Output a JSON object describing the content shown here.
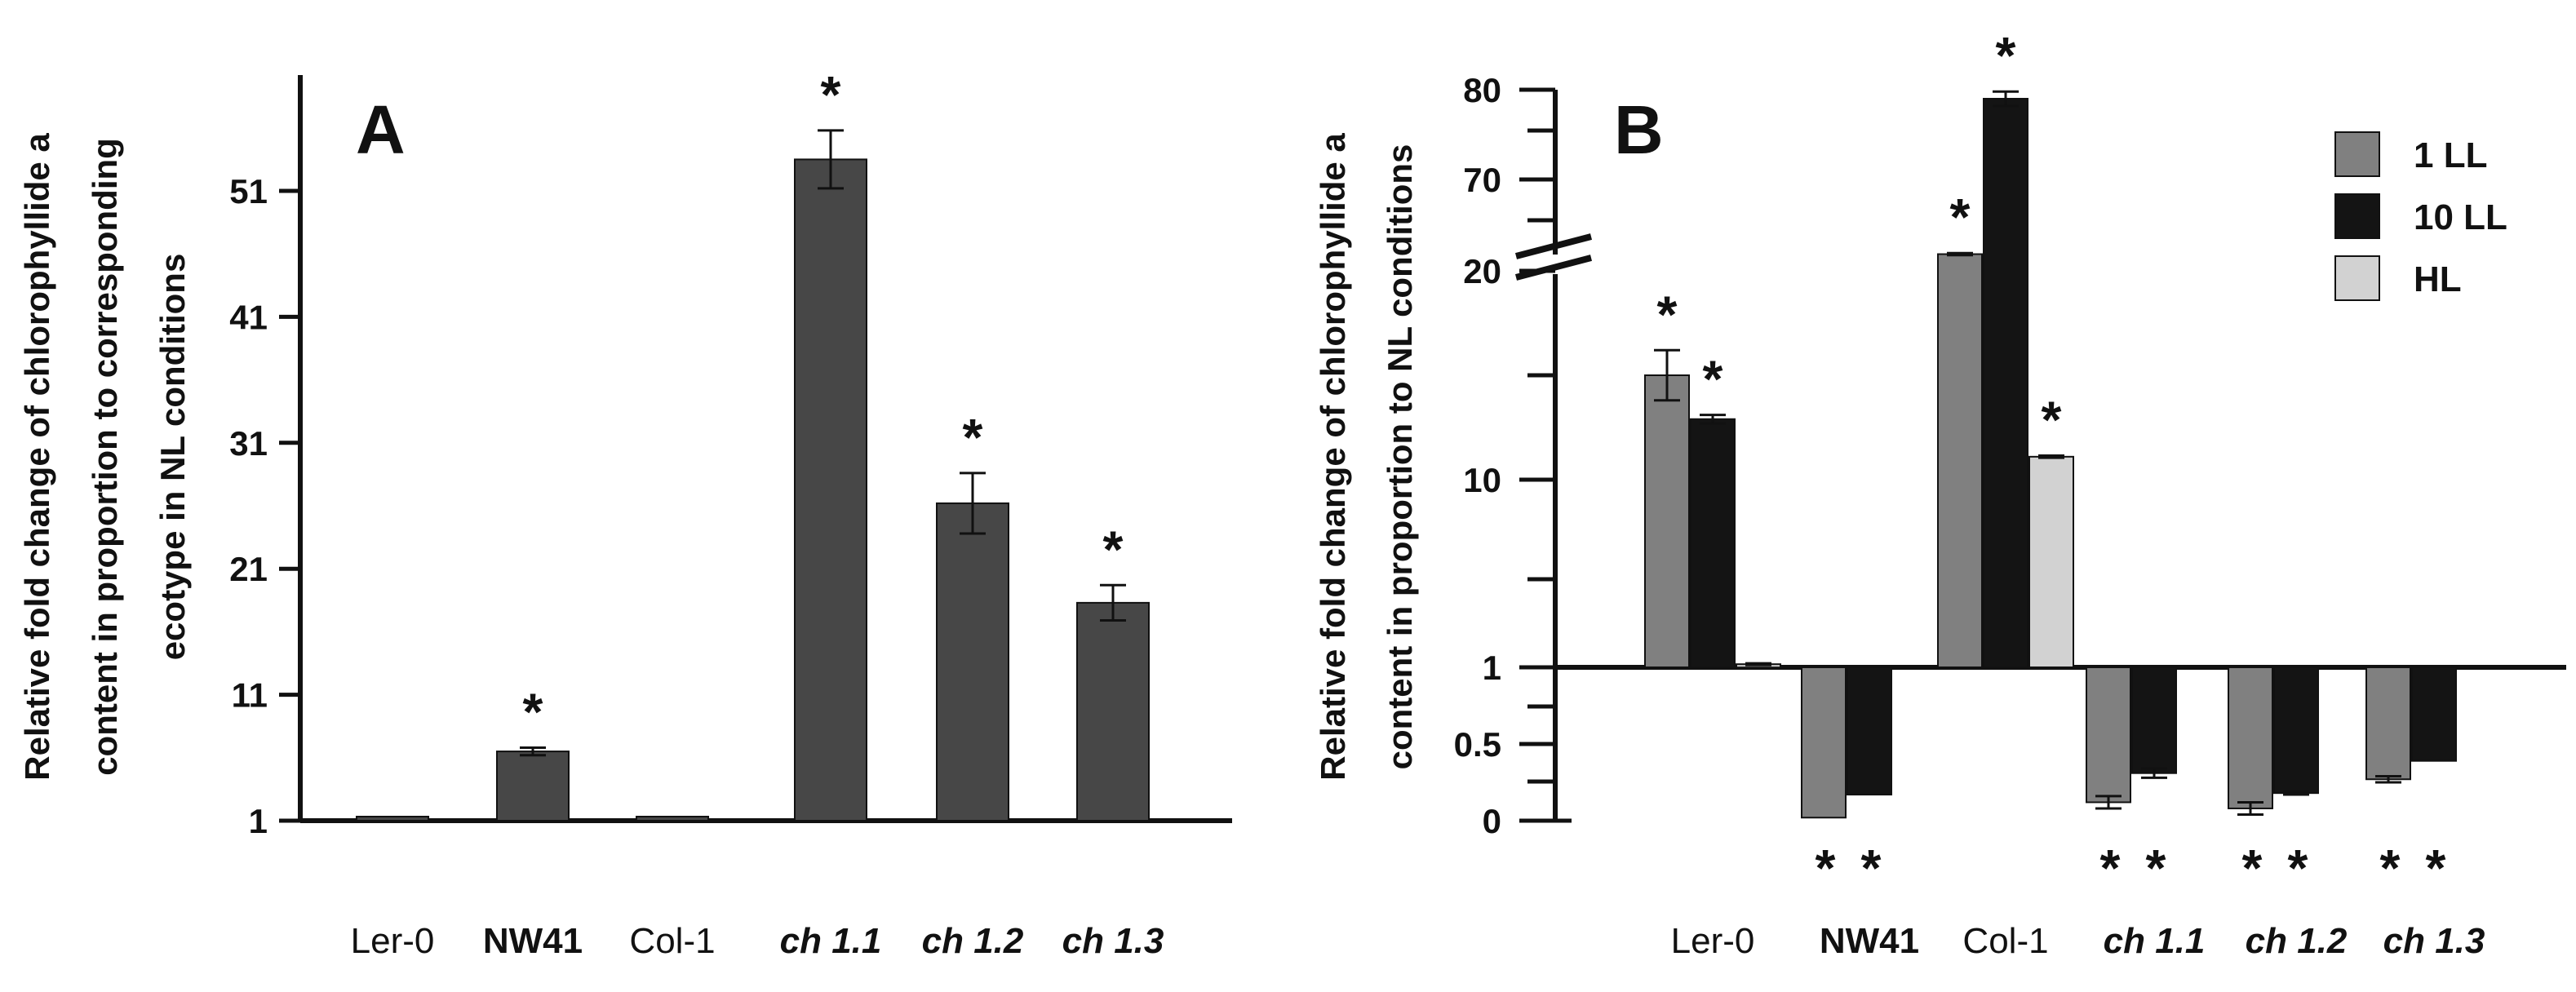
{
  "chart_data": [
    {
      "type": "bar",
      "panel": "A",
      "ylabel_lines": [
        "Relative fold change of chlorophyllide a",
        "content in proportion to corresponding",
        "ecotype in NL conditions"
      ],
      "yticks": [
        "1",
        "11",
        "21",
        "31",
        "41",
        "51"
      ],
      "ylim": [
        1,
        61
      ],
      "categories": [
        "Ler-0",
        "NW41",
        "Col-1",
        "ch 1.1",
        "ch 1.2",
        "ch 1.3"
      ],
      "category_style": [
        "normal",
        "bold",
        "normal",
        "italic",
        "italic",
        "italic"
      ],
      "values": [
        1,
        6.5,
        1,
        53.5,
        26.2,
        18.3
      ],
      "errors": [
        0,
        0.3,
        0,
        2.3,
        2.4,
        1.4
      ],
      "significance": [
        "",
        "*",
        "",
        "*",
        "*",
        "*"
      ],
      "color": "#474747"
    },
    {
      "type": "bar",
      "panel": "B",
      "ylabel_lines": [
        "Relative fold change of chlorophyllide a",
        "content in proportion to NL conditions"
      ],
      "yticks": [
        "0",
        "0.5",
        "1",
        "10",
        "20",
        "70",
        "80"
      ],
      "axis_break": "between 20 and 70",
      "categories": [
        "Ler-0",
        "NW41",
        "Col-1",
        "ch 1.1",
        "ch 1.2",
        "ch 1.3"
      ],
      "category_style": [
        "normal",
        "bold",
        "normal",
        "italic",
        "italic",
        "italic"
      ],
      "legend_position": "top-right",
      "series": [
        {
          "name": "1 LL",
          "color": "#808080",
          "values": [
            15,
            0.02,
            20.8,
            0.12,
            0.08,
            0.27
          ],
          "errors": [
            1.2,
            0,
            0.05,
            0.04,
            0.04,
            0.02
          ],
          "significance": [
            "*",
            "*",
            "*",
            "*",
            "*",
            "*"
          ]
        },
        {
          "name": "10 LL",
          "color": "#141414",
          "values": [
            12.9,
            0.17,
            79,
            0.31,
            0.18,
            0.39
          ],
          "errors": [
            0.2,
            0,
            0.8,
            0.03,
            0.01,
            0
          ],
          "significance": [
            "*",
            "*",
            "*",
            "*",
            "*",
            "*"
          ]
        },
        {
          "name": "HL",
          "color": "#d2d2d2",
          "values": [
            1.15,
            null,
            11.1,
            null,
            null,
            null
          ],
          "errors": [
            0.04,
            null,
            0.05,
            null,
            null,
            null
          ],
          "significance": [
            "",
            "",
            "*",
            "",
            "",
            ""
          ]
        }
      ]
    }
  ]
}
